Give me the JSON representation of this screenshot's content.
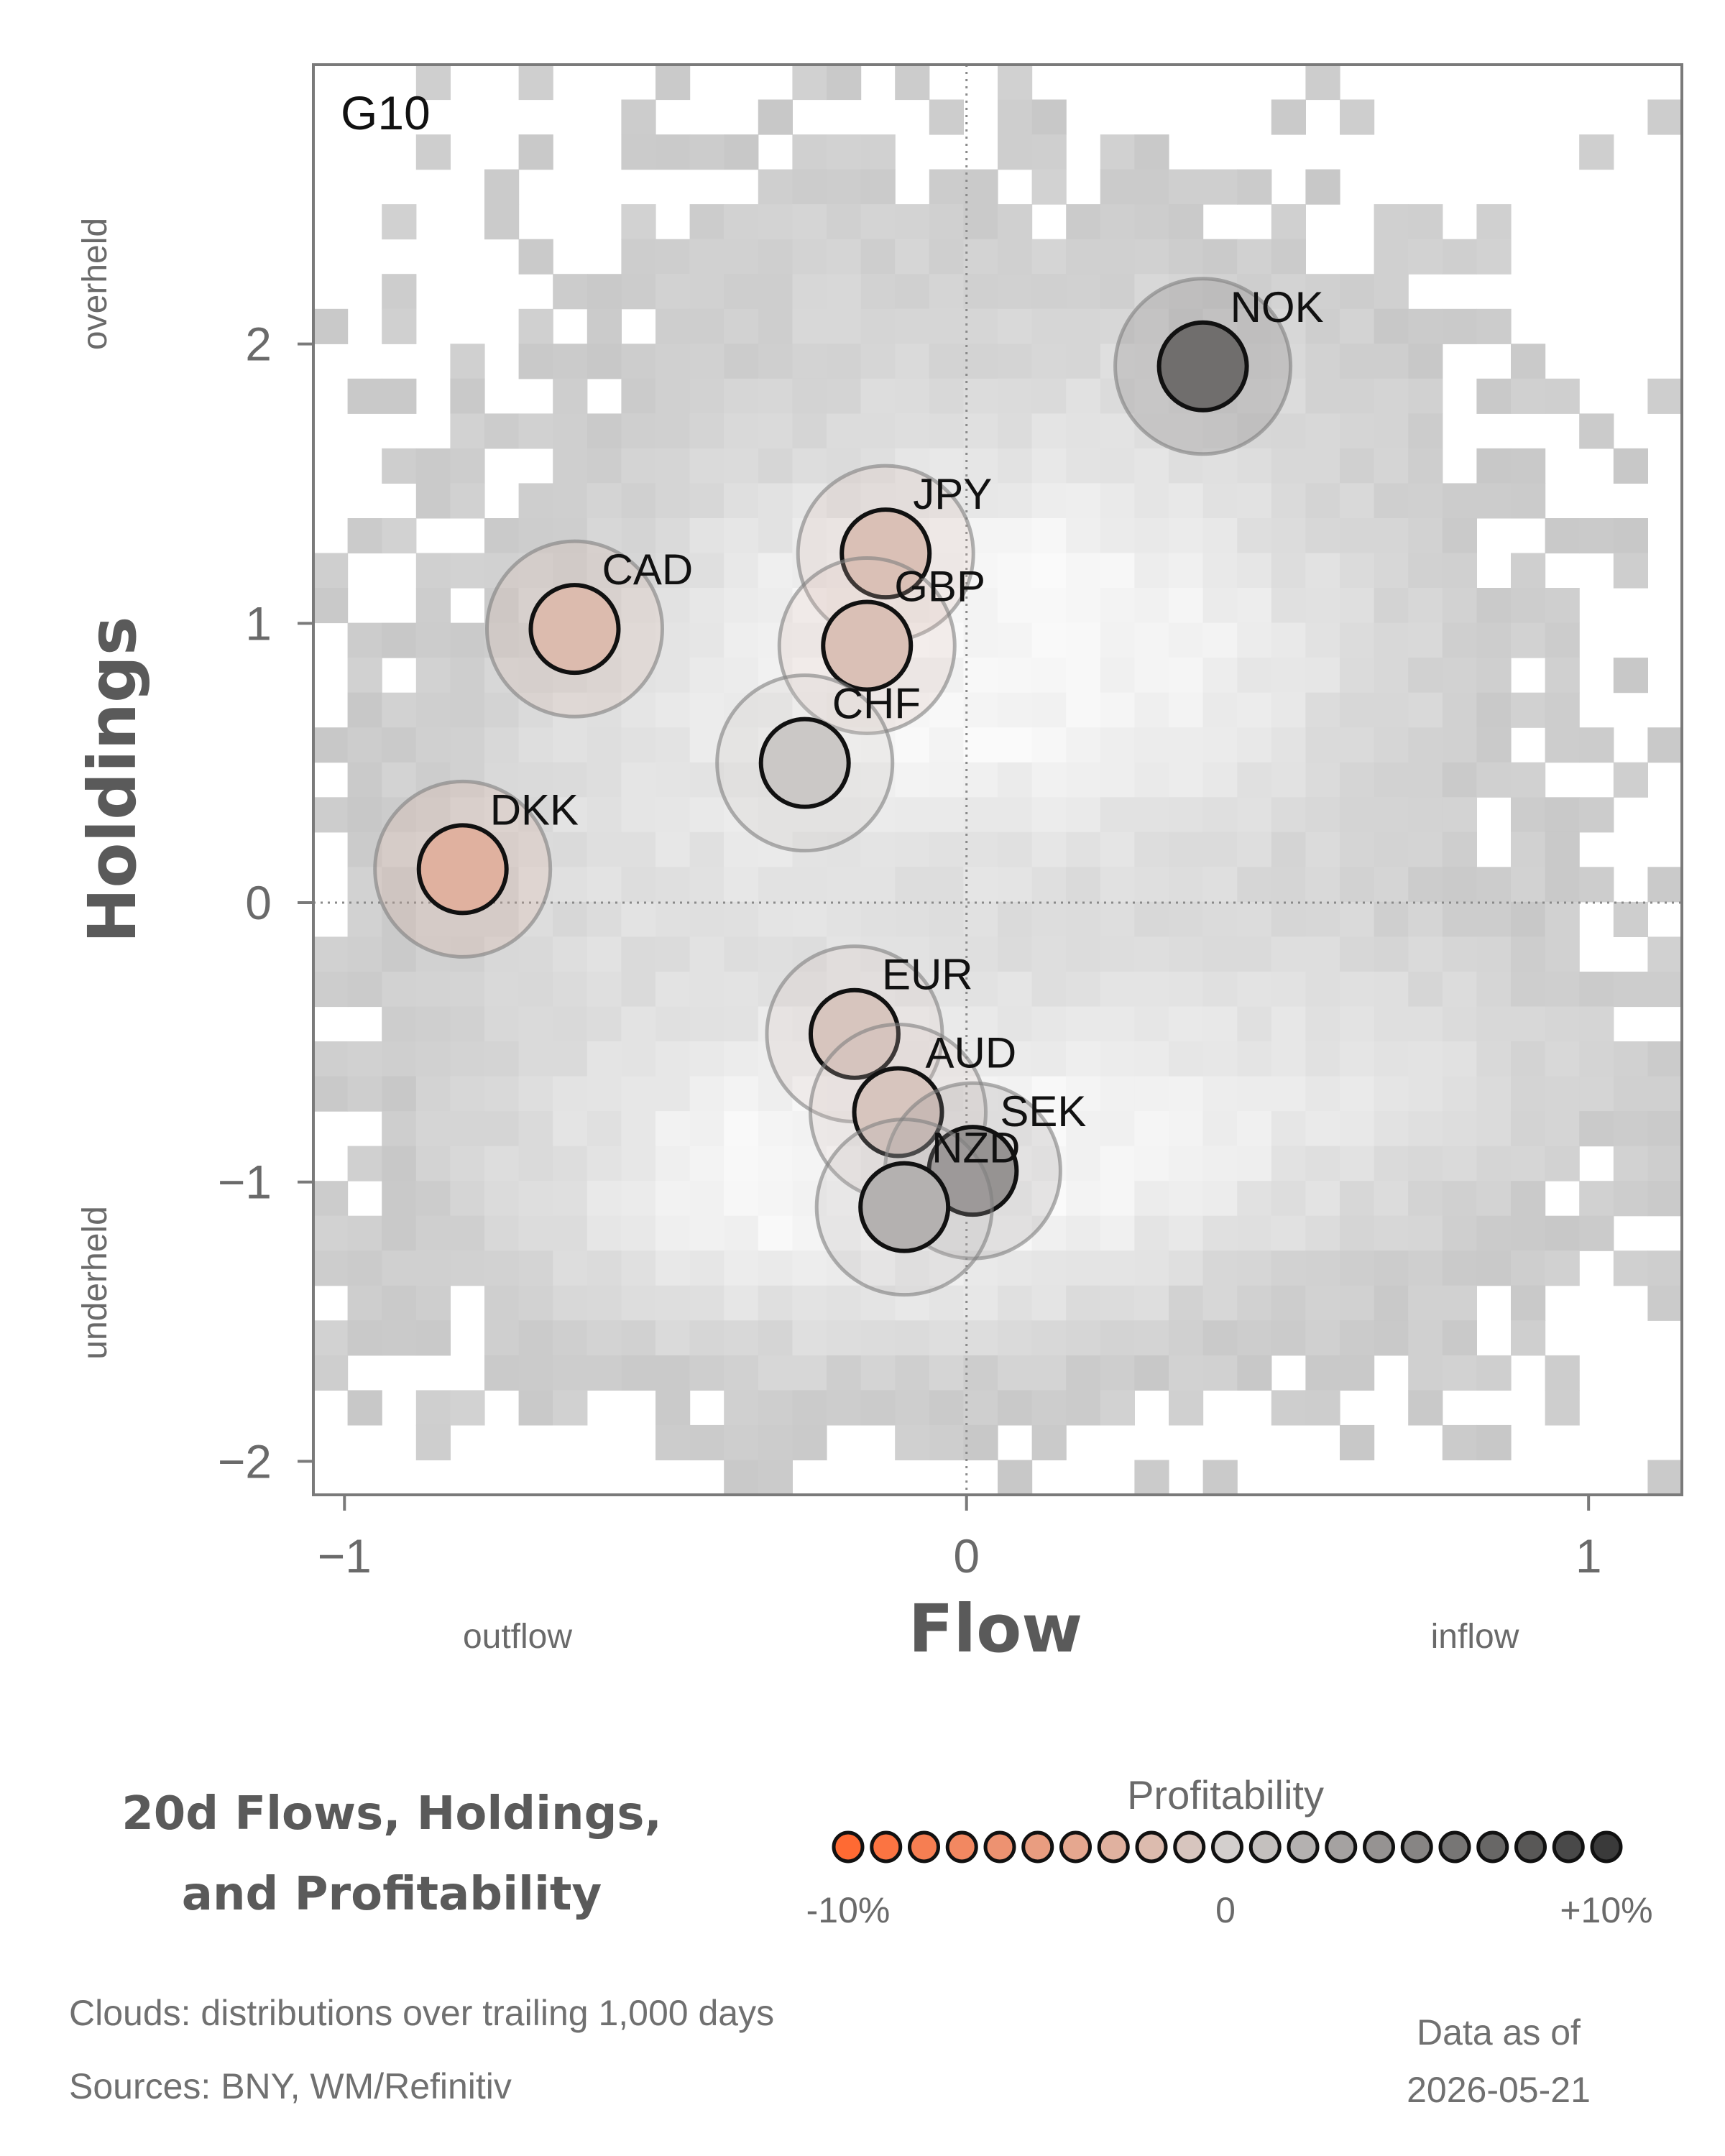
{
  "chart_data": {
    "type": "scatter",
    "panel_label": "G10",
    "xlabel": "Flow",
    "ylabel": "Holdings",
    "xlim": [
      -1.05,
      1.15
    ],
    "ylim": [
      -2.12,
      3.0
    ],
    "x_ticks": [
      {
        "value": -1,
        "label": "−1"
      },
      {
        "value": 0,
        "label": "0"
      },
      {
        "value": 1,
        "label": "1"
      }
    ],
    "y_ticks": [
      {
        "value": 2,
        "label": "2"
      },
      {
        "value": 1,
        "label": "1"
      },
      {
        "value": 0,
        "label": "0"
      },
      {
        "value": -1,
        "label": "−1"
      },
      {
        "value": -2,
        "label": "−2"
      }
    ],
    "x_side_labels": {
      "left": "outflow",
      "right": "inflow"
    },
    "y_side_labels": {
      "top": "overheld",
      "bottom": "underheld"
    },
    "reference_lines": {
      "x": 0,
      "y": 0
    },
    "points": [
      {
        "label": "NOK",
        "x": 0.38,
        "y": 1.92,
        "profitability": 6.5
      },
      {
        "label": "JPY",
        "x": -0.13,
        "y": 1.25,
        "profitability": -1.5
      },
      {
        "label": "CAD",
        "x": -0.63,
        "y": 0.98,
        "profitability": -2.0
      },
      {
        "label": "GBP",
        "x": -0.16,
        "y": 0.92,
        "profitability": -1.5
      },
      {
        "label": "CHF",
        "x": -0.26,
        "y": 0.5,
        "profitability": 0.5
      },
      {
        "label": "DKK",
        "x": -0.81,
        "y": 0.12,
        "profitability": -3.0
      },
      {
        "label": "EUR",
        "x": -0.18,
        "y": -0.47,
        "profitability": -1.0
      },
      {
        "label": "AUD",
        "x": -0.11,
        "y": -0.75,
        "profitability": -1.0
      },
      {
        "label": "SEK",
        "x": 0.01,
        "y": -0.96,
        "profitability": 4.0
      },
      {
        "label": "NZD",
        "x": -0.1,
        "y": -1.09,
        "profitability": 2.0
      }
    ],
    "cloud": {
      "grid_cols": 40,
      "grid_rows": 41,
      "description": "density cloud shown as gray heatmap"
    },
    "colorscale": {
      "title": "Profitability",
      "min_label": "-10%",
      "mid_label": "0",
      "max_label": "+10%",
      "min": -10,
      "max": 10,
      "low_color": "#ff6a33",
      "mid_color": "#d3cfcd",
      "high_color": "#3a3a3a",
      "swatch_count": 21
    }
  },
  "title_block": {
    "line1": "20d Flows, Holdings,",
    "line2": "and Profitability"
  },
  "footer": {
    "clouds_note": "Clouds:  distributions over trailing 1,000 days",
    "sources": "Sources:  BNY, WM/Refinitiv",
    "asof_label": "Data as of",
    "asof_date": "2026-05-21"
  },
  "colors": {
    "axis": "#7a7a7a",
    "text_dark": "#5a5a5a",
    "text_mid": "#707070"
  }
}
